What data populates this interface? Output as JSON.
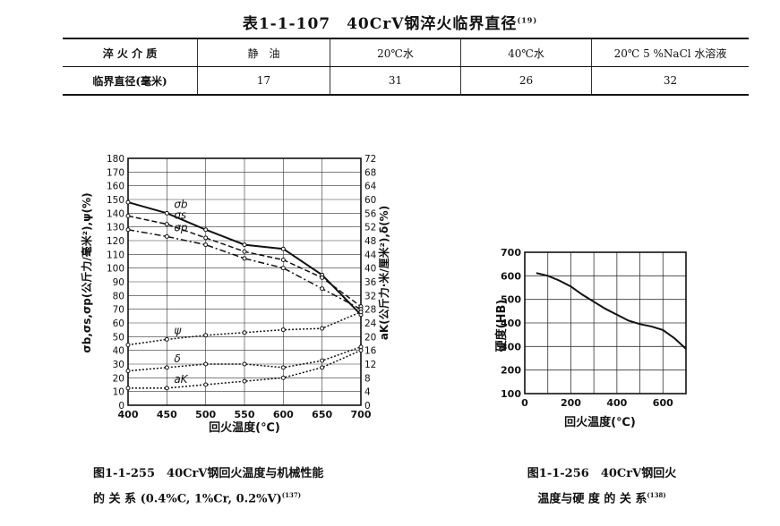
{
  "table": {
    "title": "表1-1-107　40CrV钢淬火临界直径",
    "title_ref": "(19)",
    "header": [
      "淬 火 介 质",
      "静　油",
      "20℃水",
      "40℃水",
      "20℃ 5 %NaCl 水溶液"
    ],
    "row": [
      "临界直径(毫米)",
      "17",
      "31",
      "26",
      "32"
    ]
  },
  "chart_data": [
    {
      "type": "line",
      "title": "",
      "xlabel": "回火温度(℃)",
      "ylabel": "σb,σs,σp(公斤力/毫米²),ψ(%)",
      "y2label": "aK(公斤力·米/厘米²),δ(%)",
      "x": [
        400,
        450,
        500,
        550,
        600,
        650,
        700
      ],
      "xlim": [
        400,
        700
      ],
      "ylim": [
        0,
        180
      ],
      "y2lim": [
        0,
        72
      ],
      "yticks": [
        0,
        10,
        20,
        30,
        40,
        50,
        60,
        70,
        80,
        90,
        100,
        110,
        120,
        130,
        140,
        150,
        160,
        170,
        180
      ],
      "y2ticks": [
        0,
        4,
        8,
        12,
        16,
        20,
        24,
        28,
        32,
        36,
        40,
        44,
        48,
        52,
        56,
        60,
        64,
        68,
        72
      ],
      "grid": true,
      "series": [
        {
          "name": "σb",
          "axis": "left",
          "style": "solid",
          "values": [
            148,
            140,
            128,
            117,
            114,
            95,
            66
          ]
        },
        {
          "name": "σs",
          "axis": "left",
          "style": "dashed",
          "values": [
            138,
            132,
            122,
            112,
            106,
            93,
            72
          ]
        },
        {
          "name": "σp",
          "axis": "left",
          "style": "dash-dot",
          "values": [
            128,
            123,
            117,
            107,
            100,
            85,
            70
          ]
        },
        {
          "name": "ψ",
          "axis": "left",
          "style": "dotted",
          "values": [
            44,
            48,
            51,
            53,
            55,
            56,
            68
          ]
        },
        {
          "name": "δ",
          "axis": "right",
          "style": "dotted",
          "values": [
            10,
            11,
            12,
            12,
            11,
            13,
            17
          ]
        },
        {
          "name": "aK",
          "axis": "right",
          "style": "dotted",
          "values": [
            5,
            5,
            6,
            7,
            8,
            11,
            16
          ]
        }
      ]
    },
    {
      "type": "line",
      "title": "",
      "xlabel": "回火温度(℃)",
      "ylabel": "硬度(HB)",
      "xlim": [
        0,
        700
      ],
      "ylim": [
        100,
        700
      ],
      "xticks": [
        0,
        200,
        400,
        600
      ],
      "yticks": [
        100,
        200,
        300,
        400,
        500,
        600,
        700
      ],
      "grid": true,
      "series": [
        {
          "x": [
            50,
            100,
            150,
            200,
            250,
            300,
            350,
            400,
            450,
            500,
            550,
            600,
            650,
            700
          ],
          "values": [
            612,
            600,
            580,
            555,
            520,
            490,
            460,
            435,
            410,
            395,
            385,
            370,
            335,
            290
          ]
        }
      ]
    }
  ],
  "captions": {
    "fig1_line1": "图1-1-255　40CrV钢回火温度与机械性能",
    "fig1_line2": "的 关 系 (0.4%C, 1%Cr, 0.2%V)",
    "fig1_ref": "(137)",
    "fig2_line1": "图1-1-256　40CrV钢回火",
    "fig2_line2": "温度与硬 度 的 关 系",
    "fig2_ref": "(138)"
  }
}
